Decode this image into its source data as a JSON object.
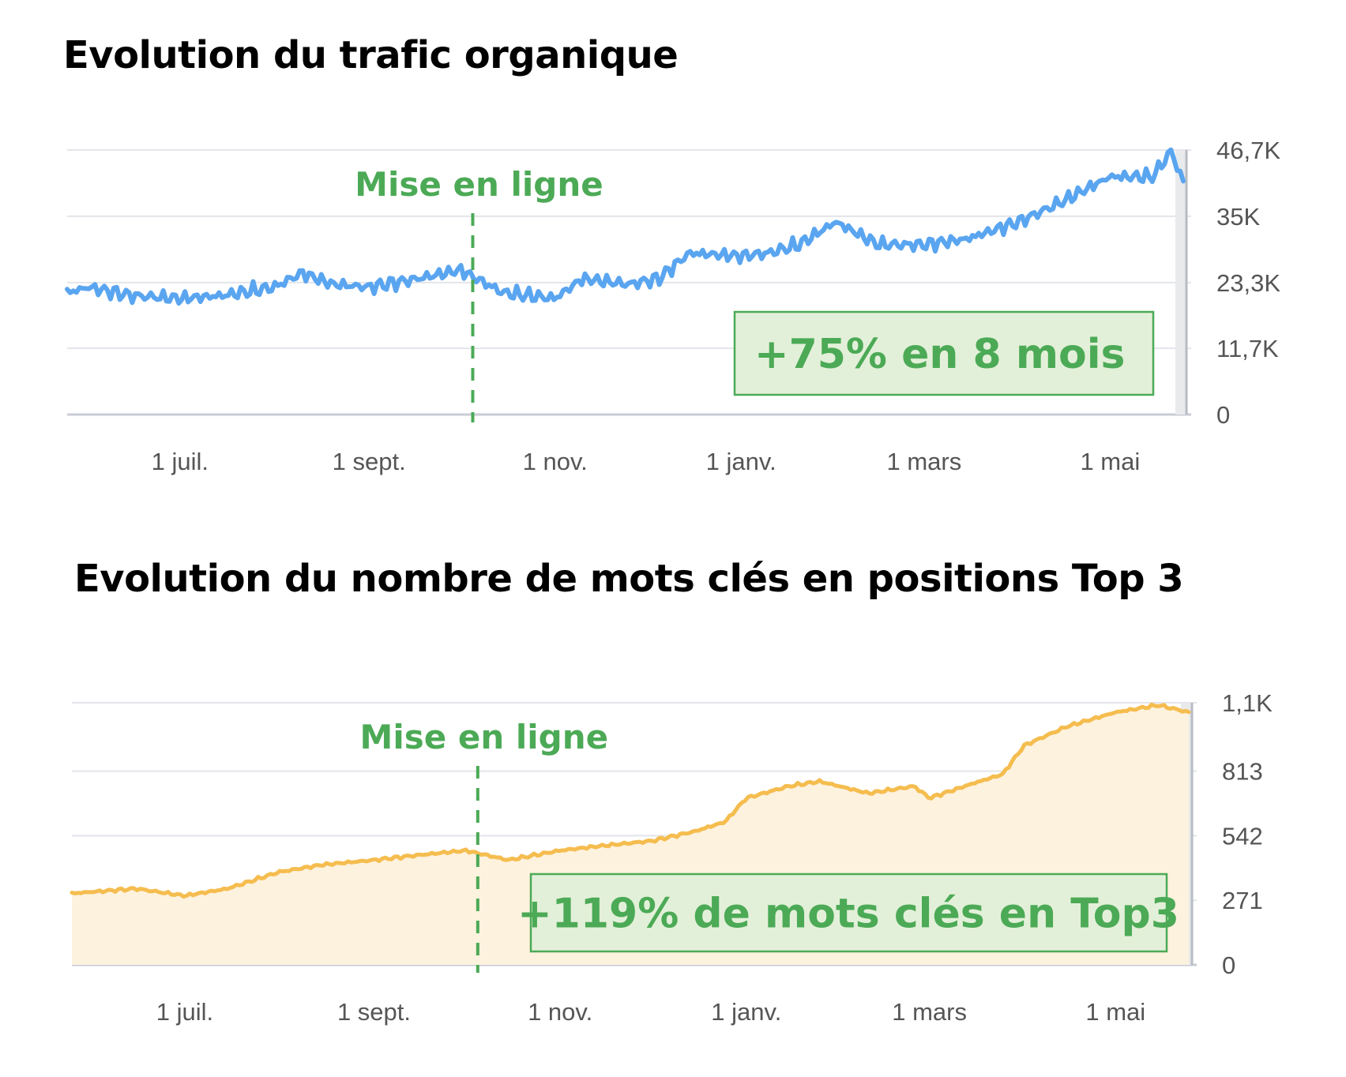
{
  "chart_data": [
    {
      "type": "line",
      "title": "Evolution du trafic organique",
      "ylim": [
        0,
        46700
      ],
      "y_ticks": [
        "46,7K",
        "35K",
        "23,3K",
        "11,7K",
        "0"
      ],
      "y_tick_values": [
        46700,
        35000,
        23300,
        11700,
        0
      ],
      "x_ticks": [
        "1 juil.",
        "1 sept.",
        "1 nov.",
        "1 janv.",
        "1 mars",
        "1 mai"
      ],
      "x_range": [
        "2023-05-25",
        "2024-05-25"
      ],
      "grid": true,
      "color": "#5aa5f0",
      "marker": {
        "label": "Mise en ligne",
        "x": "2023-10-05"
      },
      "callout": "+75% en 8 mois",
      "series": [
        {
          "x": [
            "2023-05-25",
            "2023-06-01",
            "2023-06-15",
            "2023-07-01",
            "2023-07-15",
            "2023-08-01",
            "2023-08-10",
            "2023-08-20",
            "2023-09-01",
            "2023-09-15",
            "2023-10-01",
            "2023-10-15",
            "2023-11-01",
            "2023-11-10",
            "2023-11-25",
            "2023-12-05",
            "2023-12-15",
            "2024-01-01",
            "2024-01-10",
            "2024-01-20",
            "2024-02-01",
            "2024-02-15",
            "2024-03-01",
            "2024-03-15",
            "2024-04-01",
            "2024-04-15",
            "2024-05-01",
            "2024-05-15",
            "2024-05-21",
            "2024-05-25"
          ],
          "values": [
            21500,
            22500,
            21000,
            20500,
            21000,
            22500,
            25000,
            23000,
            22500,
            23800,
            25500,
            21500,
            20500,
            24000,
            23000,
            24000,
            28500,
            28000,
            28500,
            30000,
            34000,
            30000,
            30000,
            31000,
            34000,
            37500,
            42000,
            42000,
            46500,
            41000
          ]
        }
      ]
    },
    {
      "type": "area",
      "title": "Evolution du nombre de mots clés en positions Top 3",
      "ylim": [
        0,
        1100
      ],
      "y_ticks": [
        "1,1K",
        "813",
        "542",
        "271",
        "0"
      ],
      "y_tick_values": [
        1100,
        813,
        542,
        271,
        0
      ],
      "x_ticks": [
        "1 juil.",
        "1 sept.",
        "1 nov.",
        "1 janv.",
        "1 mars",
        "1 mai"
      ],
      "x_range": [
        "2023-05-25",
        "2024-05-25"
      ],
      "grid": true,
      "color": "#f5bd4f",
      "fill": "#fdf2de",
      "marker": {
        "label": "Mise en ligne",
        "x": "2023-10-05"
      },
      "callout": "+119% de mots clés en Top3",
      "series": [
        {
          "x": [
            "2023-05-25",
            "2023-06-15",
            "2023-07-01",
            "2023-07-15",
            "2023-08-01",
            "2023-08-15",
            "2023-09-01",
            "2023-09-15",
            "2023-10-01",
            "2023-10-15",
            "2023-11-01",
            "2023-11-15",
            "2023-12-01",
            "2023-12-15",
            "2023-12-25",
            "2024-01-01",
            "2024-01-15",
            "2024-01-25",
            "2024-02-10",
            "2024-02-25",
            "2024-03-01",
            "2024-03-15",
            "2024-03-25",
            "2024-04-01",
            "2024-04-15",
            "2024-05-01",
            "2024-05-15",
            "2024-05-25"
          ],
          "values": [
            300,
            320,
            290,
            320,
            390,
            420,
            440,
            460,
            480,
            440,
            480,
            500,
            520,
            560,
            600,
            700,
            750,
            770,
            720,
            750,
            700,
            760,
            800,
            920,
            1000,
            1060,
            1090,
            1060
          ]
        }
      ]
    }
  ]
}
